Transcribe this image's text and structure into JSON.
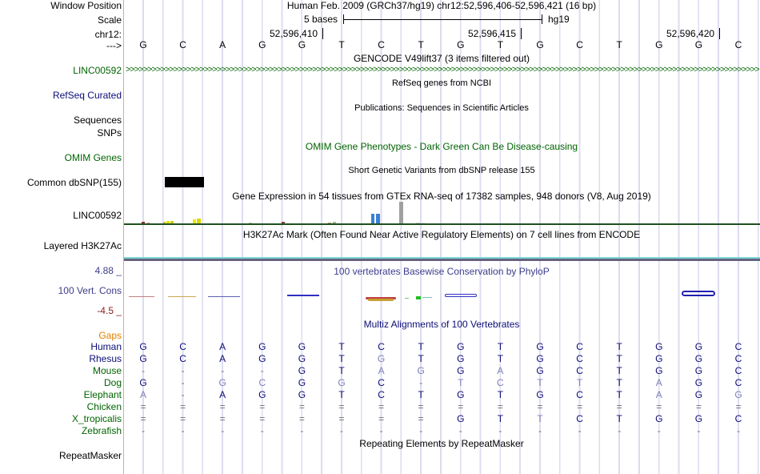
{
  "header": {
    "window_position_label": "Window Position",
    "window_position_value": "Human Feb. 2009 (GRCh37/hg19)   chr12:52,596,406-52,596,421 (16 bp)",
    "scale_label": "Scale",
    "scale_bases": "5 bases",
    "scale_assembly": "hg19",
    "chrom_label": "chr12:",
    "strand_label": "--->",
    "ticks": [
      "52,596,410",
      "52,596,415",
      "52,596,420"
    ]
  },
  "sequence": [
    "G",
    "C",
    "A",
    "G",
    "G",
    "T",
    "C",
    "T",
    "G",
    "T",
    "G",
    "C",
    "T",
    "G",
    "G",
    "C"
  ],
  "tracks": {
    "gencode": {
      "title": "GENCODE V49lift37 (3 items filtered out)",
      "label": "LINC00592"
    },
    "refseq": {
      "title": "RefSeq genes from NCBI",
      "label": "RefSeq Curated"
    },
    "publications": {
      "title": "Publications: Sequences in Scientific Articles",
      "label1": "Sequences",
      "label2": "SNPs"
    },
    "omim": {
      "title": "OMIM Gene Phenotypes - Dark Green Can Be Disease-causing",
      "label": "OMIM Genes"
    },
    "dbsnp": {
      "title": "Short Genetic Variants from dbSNP release 155",
      "label": "Common dbSNP(155)"
    },
    "gtex": {
      "title": "Gene Expression in 54 tissues from GTEx RNA-seq of 17382 samples, 948 donors (V8, Aug 2019)",
      "label": "LINC00592"
    },
    "h3k27ac": {
      "title": "H3K27Ac Mark (Often Found Near Active Regulatory Elements) on 7 cell lines from ENCODE",
      "label": "Layered H3K27Ac"
    },
    "phylop": {
      "title": "100 vertebrates Basewise Conservation by PhyloP",
      "label": "100 Vert. Cons",
      "max": "4.88 _",
      "min": "-4.5 _"
    },
    "multiz": {
      "title": "Multiz Alignments of 100 Vertebrates",
      "gaps_label": "Gaps"
    },
    "repeatmasker": {
      "title": "Repeating Elements by RepeatMasker",
      "label": "RepeatMasker"
    }
  },
  "alignment": [
    {
      "species": "Human",
      "bases": [
        "G",
        "C",
        "A",
        "G",
        "G",
        "T",
        "C",
        "T",
        "G",
        "T",
        "G",
        "C",
        "T",
        "G",
        "G",
        "C"
      ]
    },
    {
      "species": "Rhesus",
      "bases": [
        "G",
        "C",
        "A",
        "G",
        "G",
        "T",
        "G",
        "T",
        "G",
        "T",
        "G",
        "C",
        "T",
        "G",
        "G",
        "C"
      ]
    },
    {
      "species": "Mouse",
      "bases": [
        "-",
        "-",
        "-",
        "-",
        "G",
        "T",
        "A",
        "G",
        "G",
        "A",
        "G",
        "C",
        "T",
        "G",
        "G",
        "C"
      ]
    },
    {
      "species": "Dog",
      "bases": [
        "G",
        "-",
        "G",
        "C",
        "G",
        "G",
        "C",
        "-",
        "T",
        "C",
        "T",
        "T",
        "T",
        "A",
        "G",
        "C"
      ]
    },
    {
      "species": "Elephant",
      "bases": [
        "A",
        "-",
        "A",
        "G",
        "G",
        "T",
        "C",
        "T",
        "G",
        "T",
        "G",
        "C",
        "T",
        "A",
        "G",
        "G"
      ]
    },
    {
      "species": "Chicken",
      "bases": [
        "=",
        "=",
        "=",
        "=",
        "=",
        "=",
        "=",
        "=",
        "=",
        "=",
        "=",
        "=",
        "=",
        "=",
        "=",
        "="
      ]
    },
    {
      "species": "X_tropicalis",
      "bases": [
        "=",
        "=",
        "=",
        "=",
        "=",
        "=",
        "=",
        "=",
        "G",
        "T",
        "T",
        "C",
        "T",
        "G",
        "G",
        "C"
      ]
    },
    {
      "species": "Zebrafish",
      "bases": [
        "-",
        "-",
        "-",
        "-",
        "-",
        "-",
        "-",
        "-",
        "-",
        "-",
        "-",
        "-",
        "-",
        "-",
        "-",
        "-"
      ]
    }
  ],
  "colors": {
    "track_title": "#000000",
    "gene_green": "#006400",
    "refseq_navy": "#0c0c78",
    "omim_green": "#006400",
    "phylop_blue": "#3c3c8c",
    "phylop_neg": "#8c1e1e",
    "gaps_orange": "#e08000",
    "multiz_navy": "#0c0c78",
    "species_green": "#006400"
  }
}
